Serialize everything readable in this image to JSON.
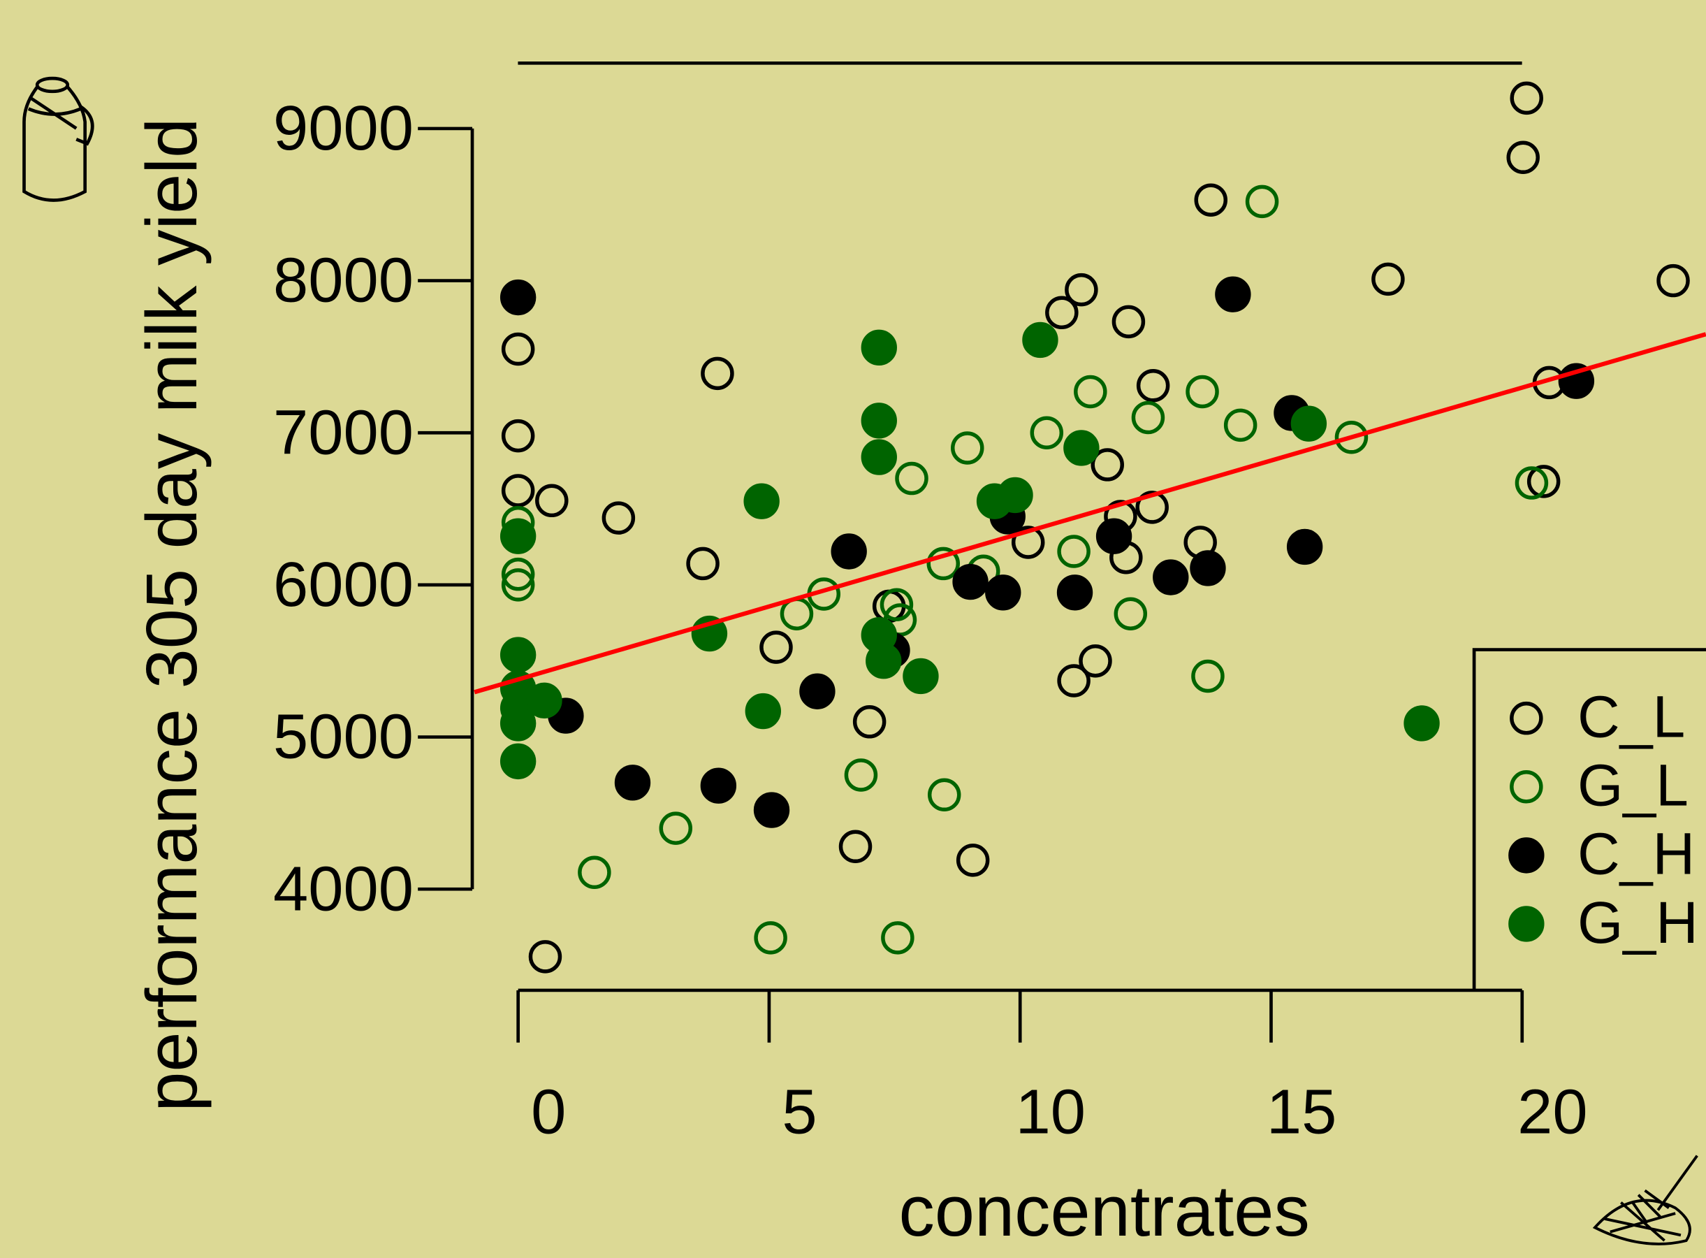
{
  "chart_data": {
    "type": "scatter",
    "x_label": "concentrates",
    "y_label": "performance 305 day milk yield",
    "xlim": [
      -0.87,
      23.66
    ],
    "ylim": [
      3335,
      9430
    ],
    "xticks": [
      0,
      5,
      10,
      15,
      20
    ],
    "yticks": [
      4000,
      5000,
      6000,
      7000,
      8000,
      9000
    ],
    "legend": "bottom-right",
    "series": [
      {
        "name": "C_L",
        "color": "#000000",
        "marker": "open",
        "x": [
          0,
          0,
          0,
          0.67,
          2.0,
          3.97,
          3.68,
          5.14,
          0.54,
          6.72,
          7.0,
          7.39,
          9.06,
          10.16,
          10.83,
          11.22,
          11.74,
          11.5,
          11.07,
          12.16,
          12.0,
          12.11,
          12.65,
          12.63,
          13.59,
          13.8,
          17.33,
          20.09,
          20.02,
          20.54,
          20.43,
          23.01
        ],
        "values": [
          7550,
          6980,
          6620,
          6554,
          6440,
          7390,
          6140,
          5590,
          3556,
          4280,
          5100,
          5860,
          4190,
          6280,
          7790,
          7940,
          6790,
          5500,
          5370,
          7730,
          6450,
          6180,
          7310,
          6510,
          6280,
          8530,
          8010,
          9200,
          8810,
          7330,
          6680,
          8000
        ]
      },
      {
        "name": "G_L",
        "color": "#006400",
        "marker": "open",
        "x": [
          14.82,
          11.4,
          13.63,
          12.55,
          14.39,
          10.53,
          16.6,
          8.95,
          7.84,
          20.19,
          0,
          0,
          0,
          8.47,
          9.27,
          11.07,
          6.09,
          5.55,
          7.54,
          7.61,
          12.2,
          13.74,
          6.83,
          8.49,
          3.14,
          1.52,
          5.03,
          7.56
        ],
        "values": [
          8520,
          7270,
          7270,
          7100,
          7050,
          7000,
          6970,
          6900,
          6700,
          6670,
          6410,
          6070,
          6000,
          6140,
          6090,
          6220,
          5940,
          5810,
          5870,
          5770,
          5810,
          5400,
          4750,
          4620,
          4400,
          4110,
          3680,
          3680
        ]
      },
      {
        "name": "C_H",
        "color": "#000000",
        "marker": "filled",
        "x": [
          0,
          14.24,
          21.08,
          15.41,
          9.75,
          11.87,
          15.67,
          6.59,
          9.01,
          9.66,
          11.09,
          13.0,
          13.74,
          7.45,
          5.96,
          0.95,
          2.28,
          3.99,
          5.05
        ],
        "values": [
          7890,
          7910,
          7340,
          7130,
          6450,
          6320,
          6250,
          6220,
          6020,
          5950,
          5950,
          6050,
          6110,
          5570,
          5300,
          5140,
          4700,
          4680,
          4520
        ]
      },
      {
        "name": "G_H",
        "color": "#006400",
        "marker": "filled",
        "x": [
          7.19,
          10.4,
          7.19,
          7.19,
          4.85,
          0,
          11.22,
          15.75,
          9.49,
          9.9,
          3.81,
          7.19,
          7.28,
          8.02,
          0,
          0,
          0,
          0.52,
          0,
          0,
          4.88,
          18.0
        ],
        "values": [
          7560,
          7610,
          7080,
          6840,
          6550,
          6320,
          6900,
          7060,
          6550,
          6590,
          5680,
          5670,
          5500,
          5400,
          5540,
          5320,
          5190,
          5240,
          5090,
          4840,
          5170,
          5090
        ]
      }
    ],
    "fit_line": {
      "color": "#ff0000",
      "x": [
        -0.87,
        23.66
      ],
      "values": [
        5295,
        7648
      ]
    }
  }
}
